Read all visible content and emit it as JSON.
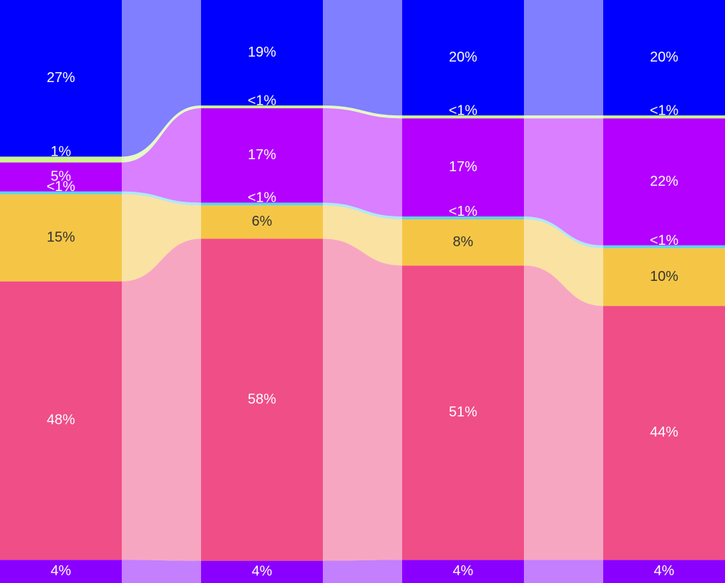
{
  "chart_data": {
    "type": "stacked_flow",
    "series": [
      {
        "color": "#8a00ff",
        "label_color": "#ffffff",
        "values": [
          4,
          4,
          4,
          4
        ],
        "value_labels": [
          "4%",
          "4%",
          "4%",
          "4%"
        ]
      },
      {
        "color": "#f04e86",
        "label_color": "#ffffff",
        "values": [
          48,
          58,
          51,
          44
        ],
        "value_labels": [
          "48%",
          "58%",
          "51%",
          "44%"
        ]
      },
      {
        "color": "#f5c646",
        "label_color": "#333333",
        "values": [
          15,
          6,
          8,
          10
        ],
        "value_labels": [
          "15%",
          "6%",
          "8%",
          "10%"
        ]
      },
      {
        "color": "#5fd3e6",
        "label_color": "#ffffff",
        "values": [
          0.5,
          0.5,
          0.5,
          0.5
        ],
        "value_labels": [
          "<1%",
          "<1%",
          "<1%",
          "<1%"
        ]
      },
      {
        "color": "#b300ff",
        "label_color": "#ffffff",
        "values": [
          5,
          17,
          17,
          22
        ],
        "value_labels": [
          "5%",
          "17%",
          "17%",
          "22%"
        ]
      },
      {
        "color": "#cdf58a",
        "label_color": "#ffffff",
        "values": [
          1,
          0.5,
          0.5,
          0.5
        ],
        "value_labels": [
          "1%",
          "<1%",
          "<1%",
          "<1%"
        ]
      },
      {
        "color": "#0000ff",
        "label_color": "#ffffff",
        "values": [
          27,
          19,
          20,
          20
        ],
        "value_labels": [
          "27%",
          "19%",
          "20%",
          "20%"
        ]
      }
    ]
  }
}
